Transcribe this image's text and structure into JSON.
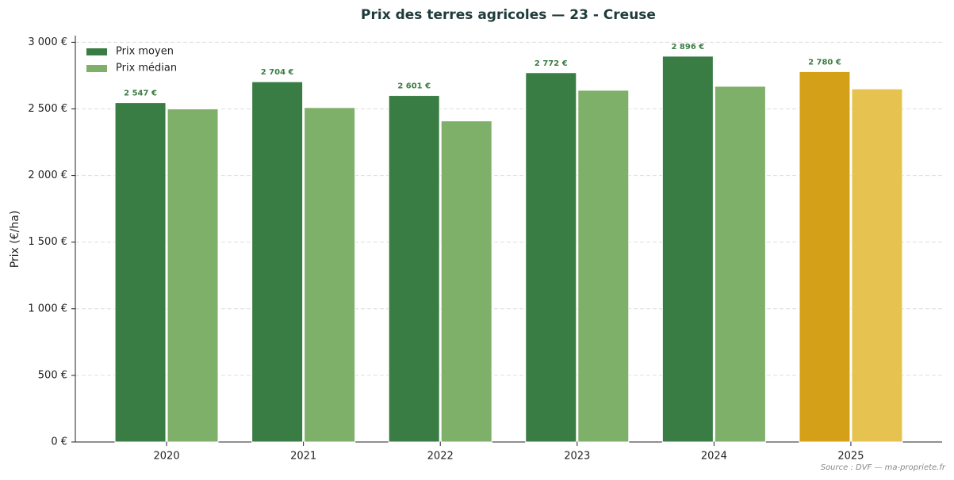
{
  "chart_data": {
    "type": "bar",
    "title": "Prix des terres agricoles — 23 - Creuse",
    "ylabel": "Prix (€/ha)",
    "source": "Source : DVF — ma-propriete.fr",
    "categories": [
      "2020",
      "2021",
      "2022",
      "2023",
      "2024",
      "2025"
    ],
    "series": [
      {
        "name": "Prix moyen",
        "color": "#3a7d44",
        "point_colors": [
          "#3a7d44",
          "#3a7d44",
          "#3a7d44",
          "#3a7d44",
          "#3a7d44",
          "#d4a017"
        ],
        "values": [
          2547,
          2704,
          2601,
          2772,
          2896,
          2780
        ],
        "value_labels": [
          "2 547 €",
          "2 704 €",
          "2 601 €",
          "2 772 €",
          "2 896 €",
          "2 780 €"
        ]
      },
      {
        "name": "Prix médian",
        "color": "#7fb069",
        "point_colors": [
          "#7fb069",
          "#7fb069",
          "#7fb069",
          "#7fb069",
          "#7fb069",
          "#e6c250"
        ],
        "values": [
          2500,
          2510,
          2410,
          2640,
          2670,
          2650
        ]
      }
    ],
    "ylim": [
      0,
      3050
    ],
    "yticks": [
      {
        "value": 0,
        "label": "0 €"
      },
      {
        "value": 500,
        "label": "500 €"
      },
      {
        "value": 1000,
        "label": "1 000 €"
      },
      {
        "value": 1500,
        "label": "1 500 €"
      },
      {
        "value": 2000,
        "label": "2 000 €"
      },
      {
        "value": 2500,
        "label": "2 500 €"
      },
      {
        "value": 3000,
        "label": "3 000 €"
      }
    ],
    "grid": true,
    "legend": "upper left"
  }
}
